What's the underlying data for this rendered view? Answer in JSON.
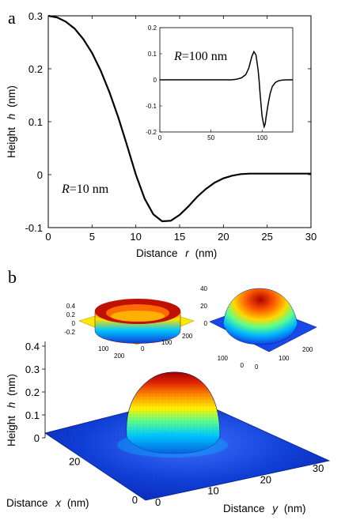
{
  "panels": {
    "a": "a",
    "b": "b"
  },
  "chart_data": [
    {
      "type": "line",
      "panel": "a",
      "xlabel": "Distance",
      "xlabel_var": "r",
      "xlabel_unit": "(nm)",
      "ylabel": "Height",
      "ylabel_var": "h",
      "ylabel_unit": "(nm)",
      "xlim": [
        0,
        30
      ],
      "ylim": [
        -0.1,
        0.3
      ],
      "x_ticks": [
        "0",
        "5",
        "10",
        "15",
        "20",
        "25",
        "30"
      ],
      "y_ticks": [
        "-0.1",
        "0",
        "0.1",
        "0.2",
        "0.3"
      ],
      "annotation": {
        "var": "R",
        "text": "=10 nm"
      },
      "grid": false,
      "series": [
        {
          "x": [
            0,
            1,
            2,
            3,
            4,
            5,
            6,
            7,
            8,
            9,
            10,
            11,
            12,
            13,
            14,
            15,
            16,
            17,
            18,
            19,
            20,
            21,
            22,
            23,
            24,
            25,
            26,
            27,
            28,
            29,
            30
          ],
          "y": [
            0.3,
            0.297,
            0.289,
            0.276,
            0.256,
            0.23,
            0.196,
            0.155,
            0.108,
            0.055,
            0.0,
            -0.045,
            -0.075,
            -0.088,
            -0.087,
            -0.076,
            -0.06,
            -0.042,
            -0.027,
            -0.015,
            -0.007,
            -0.002,
            0.001,
            0.002,
            0.002,
            0.002,
            0.002,
            0.002,
            0.002,
            0.002,
            0.002
          ]
        }
      ]
    },
    {
      "type": "line",
      "panel": "a-inset",
      "xlim": [
        0,
        130
      ],
      "ylim": [
        -0.2,
        0.2
      ],
      "x_ticks": [
        "0",
        "50",
        "100"
      ],
      "y_ticks": [
        "-0.2",
        "-0.1",
        "0",
        "0.1",
        "0.2"
      ],
      "annotation": {
        "var": "R",
        "text": "=100 nm"
      },
      "series": [
        {
          "x": [
            0,
            10,
            20,
            30,
            40,
            50,
            60,
            70,
            75,
            80,
            84,
            87,
            90,
            92,
            94,
            96,
            97,
            98,
            100,
            102,
            103,
            104,
            106,
            108,
            110,
            113,
            116,
            120,
            125,
            130
          ],
          "y": [
            0,
            0,
            0,
            0,
            0,
            0,
            0,
            0,
            0.002,
            0.008,
            0.02,
            0.045,
            0.09,
            0.108,
            0.095,
            0.04,
            0.0,
            -0.05,
            -0.14,
            -0.18,
            -0.17,
            -0.14,
            -0.09,
            -0.05,
            -0.025,
            -0.01,
            -0.004,
            -0.001,
            0,
            0
          ]
        }
      ]
    },
    {
      "type": "surface",
      "panel": "b",
      "xlabel": "Distance",
      "xlabel_var": "x",
      "xlabel_unit": "(nm)",
      "ylabel": "Distance",
      "ylabel_var": "y",
      "ylabel_unit": "(nm)",
      "zlabel": "Height",
      "zlabel_var": "h",
      "zlabel_unit": "(nm)",
      "z_ticks": [
        "0",
        "0.1",
        "0.2",
        "0.3",
        "0.4"
      ],
      "x_ticks": [
        "0",
        "20"
      ],
      "y_ticks": [
        "0",
        "10",
        "20",
        "30"
      ],
      "colormap": [
        "#0000c8",
        "#1e6cff",
        "#00d6ff",
        "#4dff9e",
        "#ffff00",
        "#ff9a00",
        "#e02000",
        "#a00000"
      ],
      "peak_height": 0.36,
      "insets": [
        {
          "type": "surface",
          "z_ticks": [
            "-0.2",
            "0",
            "0.2",
            "0.4"
          ],
          "x_ticks": [
            "0",
            "100",
            "200"
          ],
          "y_ticks": [
            "100",
            "200"
          ]
        },
        {
          "type": "surface",
          "z_ticks": [
            "0",
            "20",
            "40"
          ],
          "x_ticks": [
            "0",
            "100"
          ],
          "y_ticks": [
            "0",
            "100",
            "200"
          ]
        }
      ]
    }
  ]
}
